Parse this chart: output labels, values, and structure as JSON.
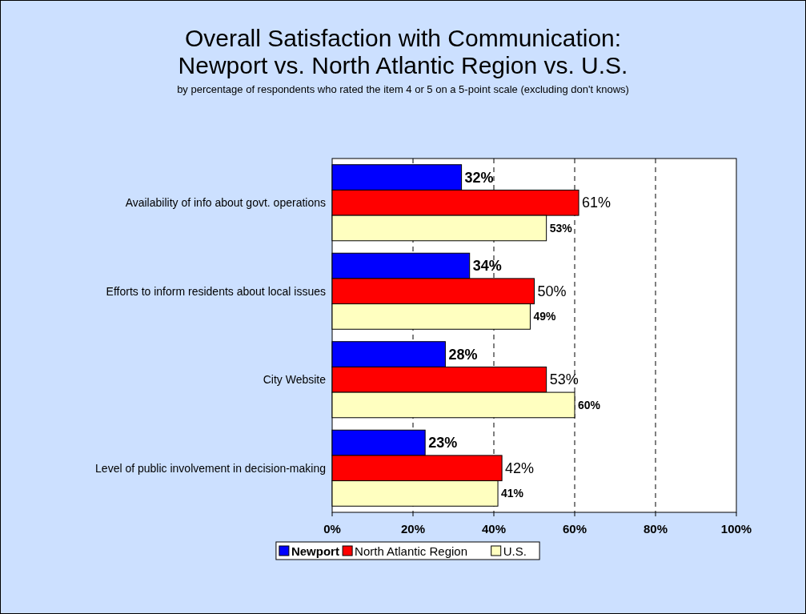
{
  "chart_data": {
    "type": "bar",
    "orientation": "horizontal",
    "title": "Overall Satisfaction with Communication:\nNewport vs. North Atlantic Region vs. U.S.",
    "subtitle": "by percentage of respondents who rated the item 4 or 5 on a 5-point scale (excluding don't knows)",
    "categories": [
      "Availability of info about govt. operations",
      "Efforts to inform residents about local issues",
      "City Website",
      "Level of public involvement in decision-making"
    ],
    "series": [
      {
        "name": "Newport",
        "color": "#0000ff",
        "values": [
          32,
          34,
          28,
          23
        ],
        "value_labels": [
          "32%",
          "34%",
          "28%",
          "23%"
        ]
      },
      {
        "name": "North Atlantic Region",
        "color": "#ff0000",
        "values": [
          61,
          50,
          53,
          42
        ],
        "value_labels": [
          "61%",
          "50%",
          "53%",
          "42%"
        ]
      },
      {
        "name": "U.S.",
        "color": "#ffffc0",
        "values": [
          53,
          49,
          60,
          41
        ],
        "value_labels": [
          "53%",
          "49%",
          "60%",
          "41%"
        ]
      }
    ],
    "xlim": [
      0,
      100
    ],
    "xticks": [
      {
        "value": 0,
        "label": "0%"
      },
      {
        "value": 20,
        "label": "20%"
      },
      {
        "value": 40,
        "label": "40%"
      },
      {
        "value": 60,
        "label": "60%"
      },
      {
        "value": 80,
        "label": "80%"
      },
      {
        "value": 100,
        "label": "100%"
      }
    ],
    "grid": "x",
    "legend": "bottom"
  }
}
